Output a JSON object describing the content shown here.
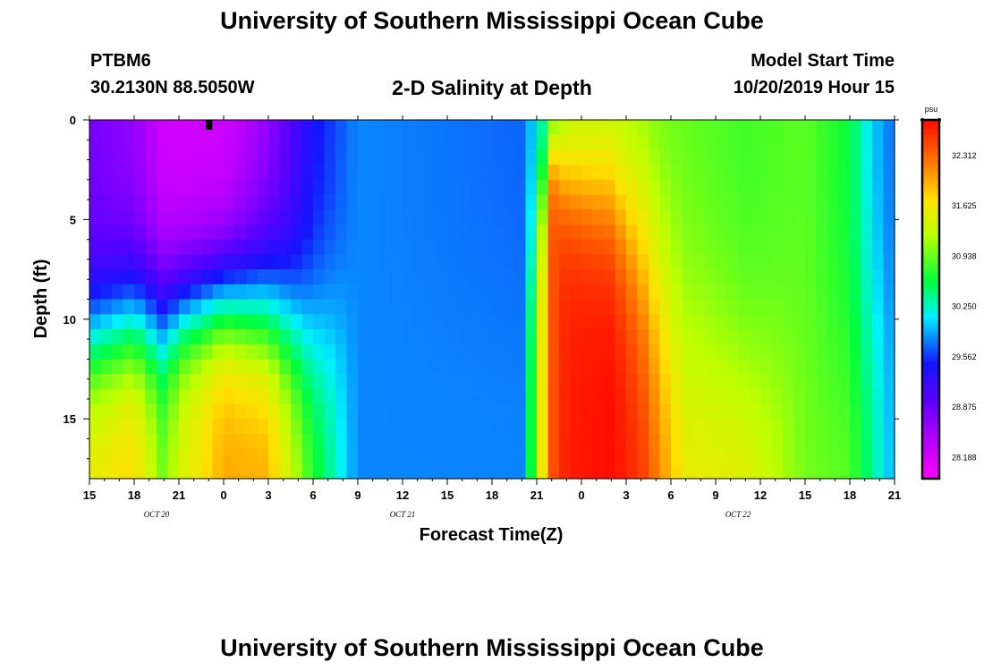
{
  "page": {
    "title_top": "University of Southern Mississippi Ocean Cube",
    "title_bottom": "University of Southern Mississippi Ocean Cube",
    "station_id": "PTBM6",
    "station_coords": "30.2130N 88.5050W",
    "plot_title": "2-D Salinity at Depth",
    "start_label": "Model Start Time",
    "start_value": "10/20/2019 Hour 15"
  },
  "chart_data": {
    "type": "heatmap",
    "title": "2-D Salinity at Depth",
    "xlabel": "Forecast Time(Z)",
    "ylabel": "Depth (ft)",
    "x_range_hours": [
      0,
      54
    ],
    "y_range_ft": [
      0,
      18
    ],
    "x_tick_labels": [
      "15",
      "18",
      "21",
      "0",
      "3",
      "6",
      "9",
      "12",
      "15",
      "18",
      "21",
      "0",
      "3",
      "6",
      "9",
      "12",
      "15",
      "18",
      "21"
    ],
    "y_ticks": [
      0,
      5,
      10,
      15
    ],
    "y_tick_labels": [
      "0",
      "5",
      "10",
      "15"
    ],
    "date_labels": [
      {
        "text": "OCT 20",
        "hour": 4.5
      },
      {
        "text": "OCT 21",
        "hour": 21
      },
      {
        "text": "OCT 22",
        "hour": 43.5
      }
    ],
    "marker_hour": 8,
    "colorbar": {
      "unit": "psu",
      "min": 27.9,
      "max": 32.8,
      "tick_values": [
        32.312,
        31.625,
        30.938,
        30.25,
        29.562,
        28.875,
        28.188
      ],
      "tick_labels": [
        "32.312",
        "31.625",
        "30.938",
        "30.250",
        "29.562",
        "28.875",
        "28.188"
      ]
    },
    "grid": {
      "dx_hours": 0.75,
      "dy_ft": 0.75,
      "keyframes": [
        {
          "hour": 0,
          "top": 28.8,
          "bottom": 31.6,
          "mix": 11,
          "w": 2.0
        },
        {
          "hour": 3,
          "top": 28.6,
          "bottom": 31.8,
          "mix": 10,
          "w": 2.0
        },
        {
          "hour": 5,
          "top": 28.2,
          "bottom": 31.0,
          "mix": 10,
          "w": 2.0
        },
        {
          "hour": 6,
          "top": 28.2,
          "bottom": 31.4,
          "mix": 9.5,
          "w": 1.8
        },
        {
          "hour": 9,
          "top": 28.2,
          "bottom": 32.0,
          "mix": 9,
          "w": 1.8
        },
        {
          "hour": 12,
          "top": 28.6,
          "bottom": 32.0,
          "mix": 9.5,
          "w": 2.2
        },
        {
          "hour": 15,
          "top": 29.4,
          "bottom": 30.8,
          "mix": 11,
          "w": 2.5
        },
        {
          "hour": 18,
          "top": 29.8,
          "bottom": 29.8,
          "mix": 10,
          "w": 3.0
        },
        {
          "hour": 29,
          "top": 29.7,
          "bottom": 29.8,
          "mix": 10,
          "w": 3.0
        },
        {
          "hour": 31,
          "top": 30.4,
          "bottom": 32.4,
          "mix": 1.0,
          "w": 1.2
        },
        {
          "hour": 32,
          "top": 30.9,
          "bottom": 32.7,
          "mix": 2.5,
          "w": 2.0
        },
        {
          "hour": 35,
          "top": 31.0,
          "bottom": 32.8,
          "mix": 3.5,
          "w": 2.5
        },
        {
          "hour": 37,
          "top": 30.9,
          "bottom": 32.6,
          "mix": 6.0,
          "w": 3.5
        },
        {
          "hour": 40,
          "top": 30.9,
          "bottom": 31.7,
          "mix": 12,
          "w": 4.0
        },
        {
          "hour": 44,
          "top": 30.8,
          "bottom": 31.6,
          "mix": 13,
          "w": 3.0
        },
        {
          "hour": 48,
          "top": 30.9,
          "bottom": 31.0,
          "mix": 12,
          "w": 3.0
        },
        {
          "hour": 51,
          "top": 30.6,
          "bottom": 30.9,
          "mix": 12,
          "w": 3.0
        },
        {
          "hour": 52.5,
          "top": 30.0,
          "bottom": 30.4,
          "mix": 10,
          "w": 3.0
        },
        {
          "hour": 54,
          "top": 29.7,
          "bottom": 29.9,
          "mix": 10,
          "w": 3.0
        }
      ]
    }
  }
}
